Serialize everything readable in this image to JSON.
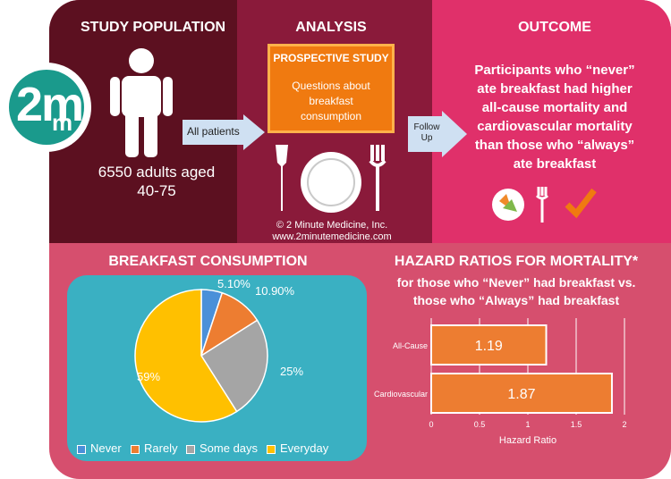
{
  "logo": {
    "text": "2m",
    "sub": "m"
  },
  "study_population": {
    "title": "STUDY POPULATION",
    "description_line1": "6550 adults aged",
    "description_line2": "40-75",
    "arrow_label": "All patients"
  },
  "analysis": {
    "title": "ANALYSIS",
    "box_title": "PROSPECTIVE STUDY",
    "box_line1": "Questions about",
    "box_line2": "breakfast",
    "box_line3": "consumption",
    "copyright": "© 2 Minute Medicine, Inc.",
    "url": "www.2minutemedicine.com",
    "arrow_label_line1": "Follow",
    "arrow_label_line2": "Up"
  },
  "outcome": {
    "title": "OUTCOME",
    "lines": [
      "Participants who “never”",
      "ate breakfast had higher",
      "all-cause mortality and",
      "cardiovascular mortality",
      "than those who “always”",
      "ate breakfast"
    ]
  },
  "breakfast_chart": {
    "title": "BREAKFAST CONSUMPTION",
    "labels": [
      "5.10%",
      "10.90%",
      "25%",
      "59%"
    ]
  },
  "hazard": {
    "title": "HAZARD RATIOS FOR MORTALITY*",
    "subtitle_line1": "for those who “Never” had breakfast vs.",
    "subtitle_line2": "those who “Always” had breakfast"
  },
  "chart_data": [
    {
      "type": "pie",
      "title": "BREAKFAST CONSUMPTION",
      "categories": [
        "Never",
        "Rarely",
        "Some days",
        "Everyday"
      ],
      "values": [
        5.1,
        10.9,
        25,
        59
      ],
      "data_labels": [
        "5.10%",
        "10.90%",
        "25%",
        "59%"
      ],
      "colors": [
        "#4a90d9",
        "#ed7d31",
        "#a5a5a5",
        "#ffc000"
      ],
      "legend_position": "bottom"
    },
    {
      "type": "bar",
      "orientation": "horizontal",
      "title": "HAZARD RATIOS FOR MORTALITY*",
      "categories": [
        "All-Cause",
        "Cardiovascular"
      ],
      "values": [
        1.19,
        1.87
      ],
      "data_labels": [
        "1.19",
        "1.87"
      ],
      "xlabel": "Hazard Ratio",
      "xlim": [
        0,
        2
      ],
      "xticks": [
        "0",
        "0.5",
        "1",
        "1.5",
        "2"
      ],
      "grid": true,
      "bar_color": "#ed7d31"
    }
  ],
  "colors": {
    "population_bg": "#5c1020",
    "analysis_bg": "#8a1a3a",
    "outcome_bg": "#e0306a",
    "bottom_bg": "#d64f6e",
    "pie_bg": "#3ab0c2",
    "logo_teal": "#1a9a8c",
    "orange": "#f07a10"
  }
}
